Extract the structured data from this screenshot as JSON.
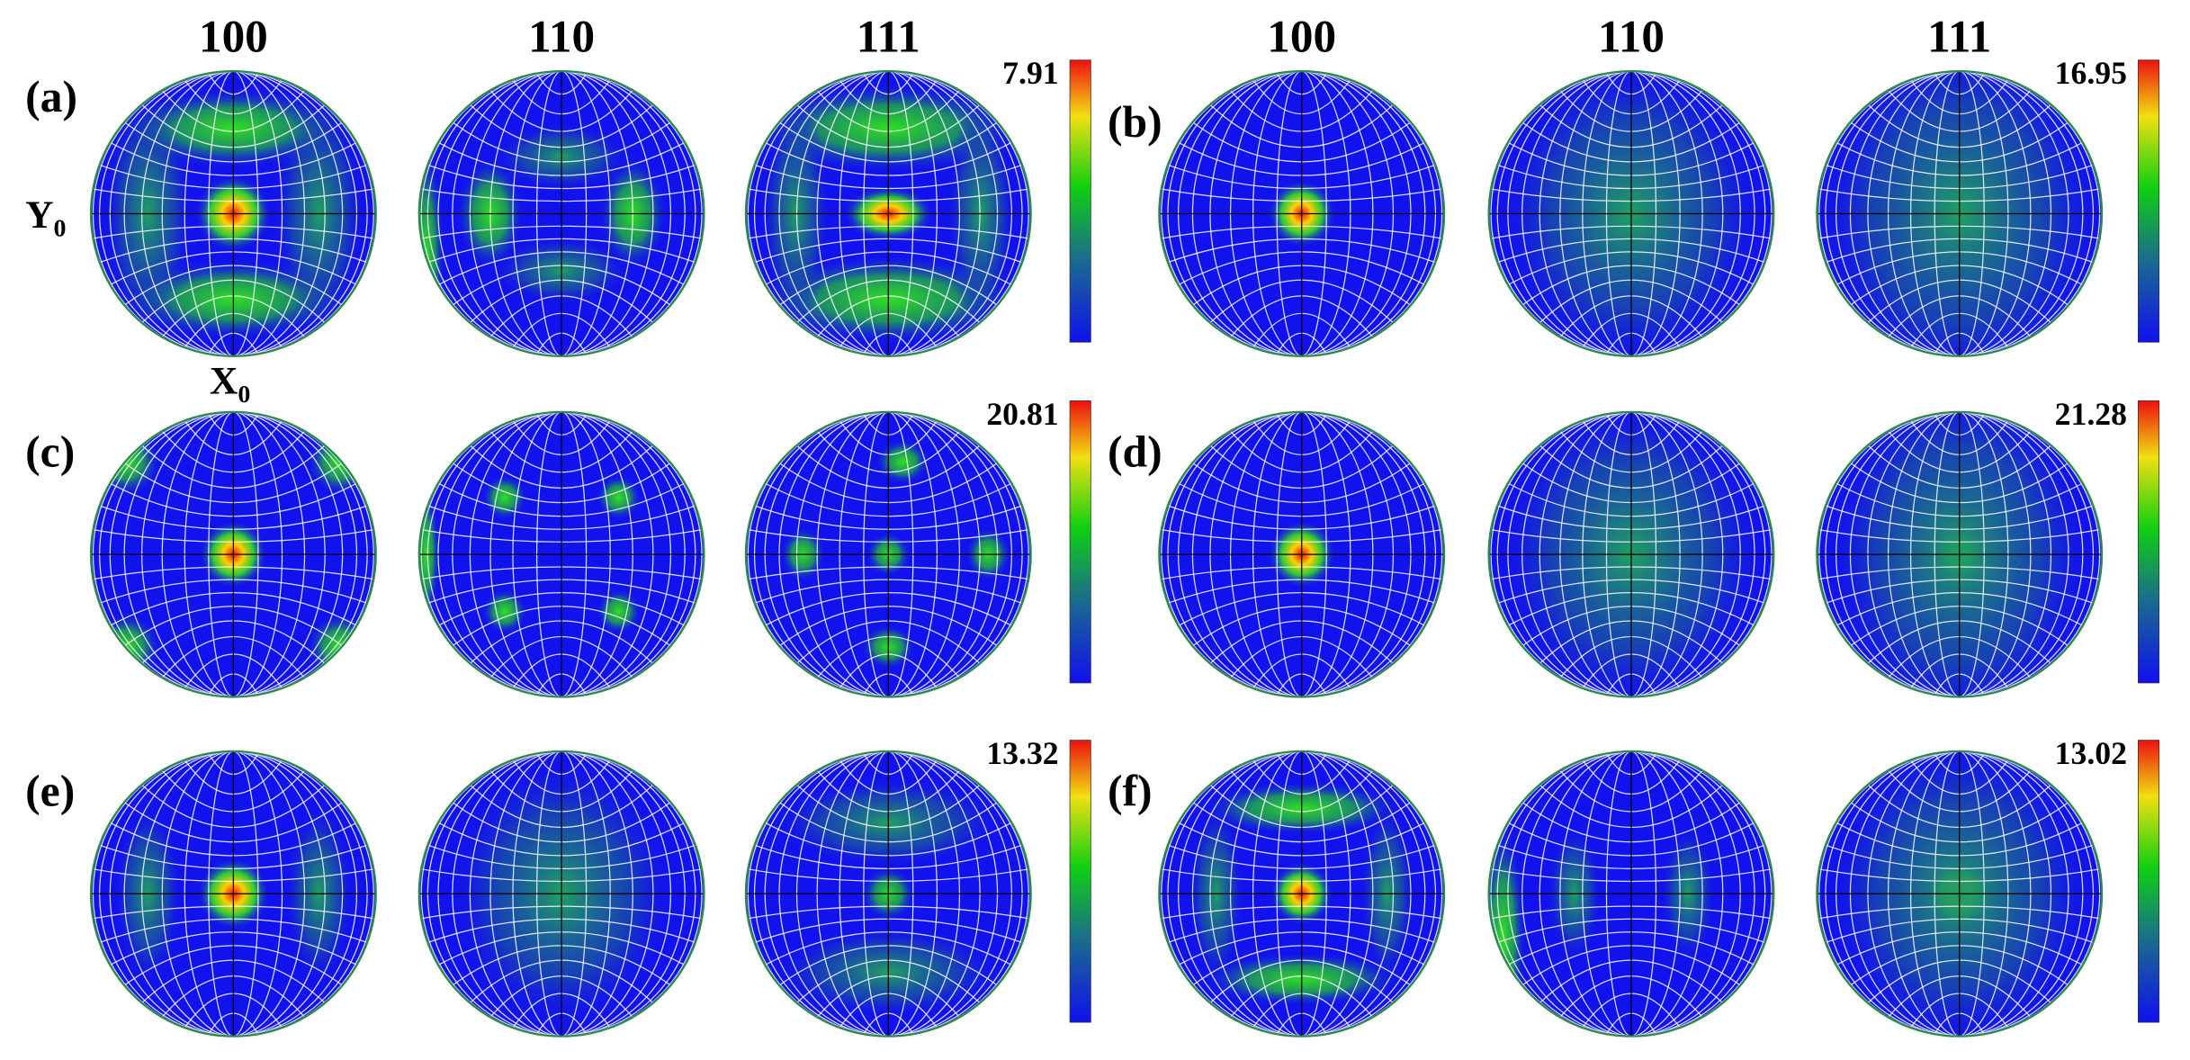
{
  "columns": [
    "100",
    "110",
    "111"
  ],
  "axes": {
    "y": "Y",
    "y_sub": "0",
    "x": "X",
    "x_sub": "0"
  },
  "panels": [
    {
      "label": "(a)",
      "max": "7.91"
    },
    {
      "label": "(b)",
      "max": "16.95"
    },
    {
      "label": "(c)",
      "max": "20.81"
    },
    {
      "label": "(d)",
      "max": "21.28"
    },
    {
      "label": "(e)",
      "max": "13.32"
    },
    {
      "label": "(f)",
      "max": "13.02"
    }
  ]
}
